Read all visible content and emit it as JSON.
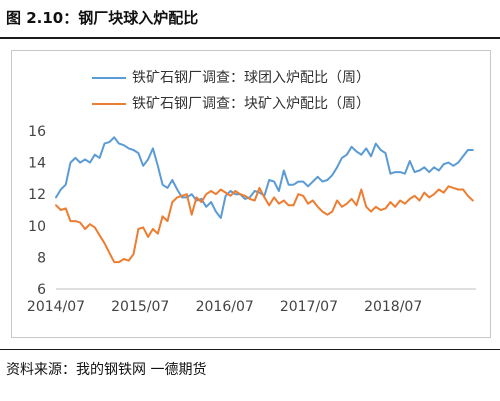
{
  "figure": {
    "title": "图 2.10：钢厂块球入炉配比",
    "source": "资料来源：我的钢铁网  一德期货"
  },
  "chart_data": {
    "type": "line",
    "title": "",
    "xlabel": "",
    "ylabel": "",
    "ylim": [
      6,
      16
    ],
    "yticks": [
      6,
      8,
      10,
      12,
      14,
      16
    ],
    "xticks": [
      "2014/07",
      "2015/07",
      "2016/07",
      "2017/07",
      "2018/07"
    ],
    "xlim": [
      "2014-07-01",
      "2019-06-25"
    ],
    "grid": false,
    "legend": "top-left",
    "series": [
      {
        "name": "铁矿石钢厂调查：球团入炉配比（周）",
        "color": "#5B9BD5",
        "x": [
          "2014-07-01",
          "2014-07-22",
          "2014-08-12",
          "2014-09-02",
          "2014-09-23",
          "2014-10-14",
          "2014-11-04",
          "2014-11-25",
          "2014-12-16",
          "2015-01-06",
          "2015-01-27",
          "2015-02-17",
          "2015-03-10",
          "2015-03-31",
          "2015-04-21",
          "2015-05-12",
          "2015-06-02",
          "2015-06-23",
          "2015-07-14",
          "2015-08-04",
          "2015-08-25",
          "2015-09-15",
          "2015-10-06",
          "2015-10-27",
          "2015-11-17",
          "2015-12-08",
          "2015-12-29",
          "2016-01-19",
          "2016-02-09",
          "2016-03-01",
          "2016-03-22",
          "2016-04-12",
          "2016-05-03",
          "2016-05-24",
          "2016-06-14",
          "2016-07-05",
          "2016-07-26",
          "2016-08-16",
          "2016-09-06",
          "2016-09-27",
          "2016-10-18",
          "2016-11-08",
          "2016-11-29",
          "2016-12-20",
          "2017-01-10",
          "2017-01-31",
          "2017-02-21",
          "2017-03-14",
          "2017-04-04",
          "2017-04-25",
          "2017-05-16",
          "2017-06-06",
          "2017-06-27",
          "2017-07-18",
          "2017-08-08",
          "2017-08-29",
          "2017-09-19",
          "2017-10-10",
          "2017-10-31",
          "2017-11-21",
          "2017-12-12",
          "2018-01-02",
          "2018-01-23",
          "2018-02-13",
          "2018-03-06",
          "2018-03-27",
          "2018-04-17",
          "2018-05-08",
          "2018-05-29",
          "2018-06-19",
          "2018-07-10",
          "2018-07-31",
          "2018-08-21",
          "2018-09-11",
          "2018-10-02",
          "2018-10-23",
          "2018-11-13",
          "2018-12-04",
          "2018-12-25",
          "2019-01-15",
          "2019-02-05",
          "2019-02-26",
          "2019-03-19",
          "2019-04-09",
          "2019-04-30",
          "2019-05-21",
          "2019-06-11"
        ],
        "values": [
          11.8,
          12.3,
          12.6,
          14.0,
          14.3,
          14.0,
          14.2,
          14.0,
          14.5,
          14.3,
          15.2,
          15.3,
          15.6,
          15.2,
          15.1,
          14.9,
          14.8,
          14.6,
          13.8,
          14.2,
          14.9,
          13.8,
          12.6,
          12.4,
          12.9,
          12.3,
          11.8,
          11.8,
          12.0,
          11.6,
          11.7,
          11.2,
          11.5,
          10.9,
          10.5,
          11.9,
          12.2,
          12.0,
          12.0,
          11.7,
          11.8,
          12.2,
          12.1,
          11.9,
          12.9,
          12.8,
          12.2,
          13.5,
          12.6,
          12.6,
          12.8,
          12.8,
          12.5,
          12.8,
          13.1,
          12.8,
          12.9,
          13.2,
          13.7,
          14.3,
          14.5,
          15.0,
          14.7,
          14.5,
          14.9,
          14.4,
          15.2,
          14.8,
          14.6,
          13.3,
          13.4,
          13.4,
          13.3,
          14.1,
          13.4,
          13.5,
          13.7,
          13.4,
          13.7,
          13.5,
          13.9,
          14.0,
          13.8,
          14.0,
          14.4,
          14.8,
          14.8
        ]
      },
      {
        "name": "铁矿石钢厂调查：块矿入炉配比（周）",
        "color": "#ED7D31",
        "x": [
          "2014-07-01",
          "2014-07-22",
          "2014-08-12",
          "2014-09-02",
          "2014-09-23",
          "2014-10-14",
          "2014-11-04",
          "2014-11-25",
          "2014-12-16",
          "2015-01-06",
          "2015-01-27",
          "2015-02-17",
          "2015-03-10",
          "2015-03-31",
          "2015-04-21",
          "2015-05-12",
          "2015-06-02",
          "2015-06-23",
          "2015-07-14",
          "2015-08-04",
          "2015-08-25",
          "2015-09-15",
          "2015-10-06",
          "2015-10-27",
          "2015-11-17",
          "2015-12-08",
          "2015-12-29",
          "2016-01-19",
          "2016-02-09",
          "2016-03-01",
          "2016-03-22",
          "2016-04-12",
          "2016-05-03",
          "2016-05-24",
          "2016-06-14",
          "2016-07-05",
          "2016-07-26",
          "2016-08-16",
          "2016-09-06",
          "2016-09-27",
          "2016-10-18",
          "2016-11-08",
          "2016-11-29",
          "2016-12-20",
          "2017-01-10",
          "2017-01-31",
          "2017-02-21",
          "2017-03-14",
          "2017-04-04",
          "2017-04-25",
          "2017-05-16",
          "2017-06-06",
          "2017-06-27",
          "2017-07-18",
          "2017-08-08",
          "2017-08-29",
          "2017-09-19",
          "2017-10-10",
          "2017-10-31",
          "2017-11-21",
          "2017-12-12",
          "2018-01-02",
          "2018-01-23",
          "2018-02-13",
          "2018-03-06",
          "2018-03-27",
          "2018-04-17",
          "2018-05-08",
          "2018-05-29",
          "2018-06-19",
          "2018-07-10",
          "2018-07-31",
          "2018-08-21",
          "2018-09-11",
          "2018-10-02",
          "2018-10-23",
          "2018-11-13",
          "2018-12-04",
          "2018-12-25",
          "2019-01-15",
          "2019-02-05",
          "2019-02-26",
          "2019-03-19",
          "2019-04-09",
          "2019-04-30",
          "2019-05-21",
          "2019-06-11"
        ],
        "values": [
          11.3,
          11.0,
          11.1,
          10.3,
          10.3,
          10.2,
          9.8,
          10.1,
          9.9,
          9.4,
          8.9,
          8.3,
          7.7,
          7.7,
          7.9,
          7.8,
          8.2,
          9.8,
          9.9,
          9.3,
          9.8,
          9.5,
          10.6,
          10.3,
          11.5,
          11.8,
          11.9,
          12.0,
          10.7,
          11.8,
          11.5,
          12.0,
          12.2,
          12.0,
          12.3,
          12.1,
          11.9,
          12.2,
          12.0,
          11.9,
          11.7,
          11.6,
          12.4,
          11.8,
          11.3,
          11.8,
          11.4,
          11.6,
          11.3,
          11.3,
          12.0,
          11.9,
          11.4,
          11.6,
          11.2,
          10.9,
          10.7,
          10.9,
          11.6,
          11.2,
          11.4,
          11.7,
          11.3,
          12.3,
          11.2,
          10.9,
          11.2,
          11.0,
          11.1,
          11.5,
          11.2,
          11.6,
          11.4,
          11.7,
          11.9,
          11.6,
          12.1,
          11.8,
          12.0,
          12.3,
          12.1,
          12.5,
          12.4,
          12.3,
          12.3,
          11.9,
          11.6
        ]
      }
    ]
  }
}
